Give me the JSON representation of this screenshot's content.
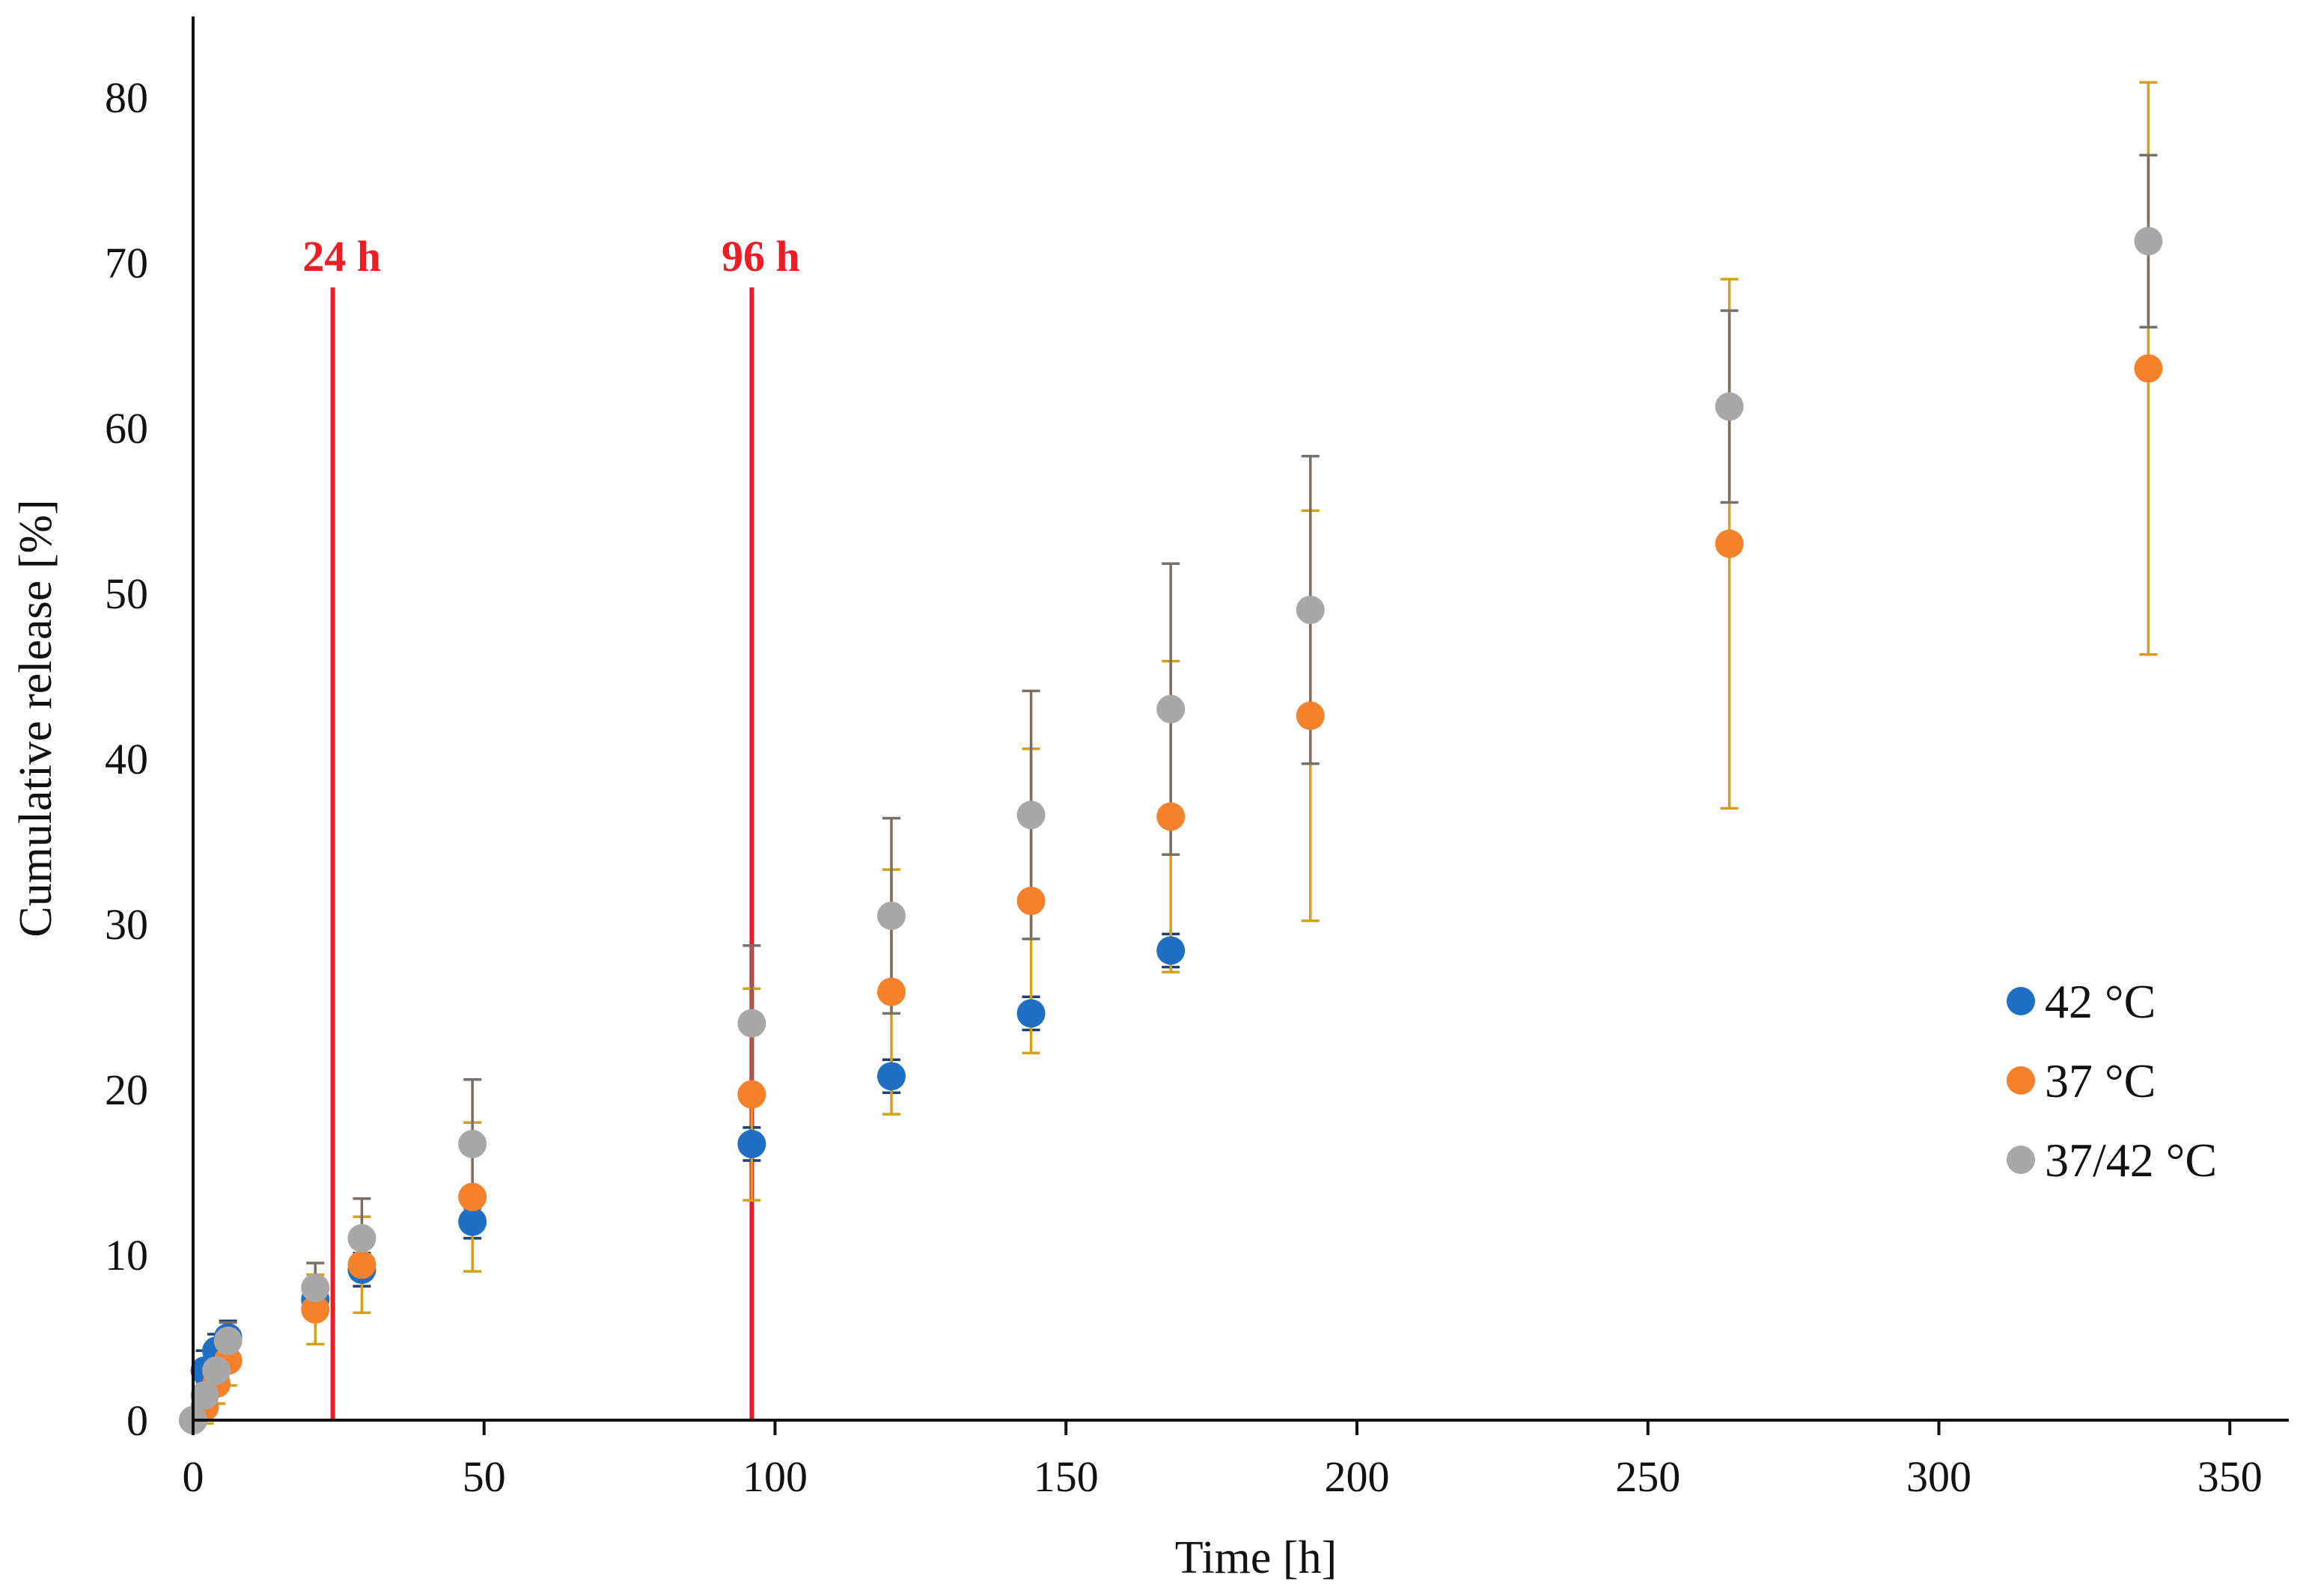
{
  "chart_data": {
    "type": "scatter",
    "title": "",
    "xlabel": "Time [h]",
    "ylabel": "Cumulative release [%]",
    "xlim": [
      0,
      360
    ],
    "ylim": [
      0,
      85
    ],
    "xticks": [
      0,
      50,
      100,
      150,
      200,
      250,
      300,
      350
    ],
    "yticks": [
      0,
      10,
      20,
      30,
      40,
      50,
      60,
      70,
      80
    ],
    "grid": false,
    "legend_position": "right",
    "error_bars": true,
    "series": [
      {
        "name": "42 °C",
        "color": "#1f6fc5",
        "error_color": "#1f3f6f",
        "points": [
          {
            "x": 0,
            "y": 0,
            "err": 0.3
          },
          {
            "x": 2,
            "y": 3.0,
            "err": 1.2
          },
          {
            "x": 4,
            "y": 4.2,
            "err": 1.0
          },
          {
            "x": 6,
            "y": 5.0,
            "err": 1.0
          },
          {
            "x": 21,
            "y": 7.3,
            "err": 1.0
          },
          {
            "x": 29,
            "y": 9.1,
            "err": 1.0
          },
          {
            "x": 48,
            "y": 12.0,
            "err": 1.0
          },
          {
            "x": 96,
            "y": 16.7,
            "err": 1.0
          },
          {
            "x": 120,
            "y": 20.8,
            "err": 1.0
          },
          {
            "x": 144,
            "y": 24.6,
            "err": 1.0
          },
          {
            "x": 168,
            "y": 28.4,
            "err": 1.0
          }
        ]
      },
      {
        "name": "37 °C",
        "color": "#f5822a",
        "error_color": "#d4a017",
        "points": [
          {
            "x": 0,
            "y": 0,
            "err": 0.3
          },
          {
            "x": 2,
            "y": 0.8,
            "err": 1.0
          },
          {
            "x": 4,
            "y": 2.2,
            "err": 1.2
          },
          {
            "x": 6,
            "y": 3.6,
            "err": 1.5
          },
          {
            "x": 21,
            "y": 6.7,
            "err": 2.1
          },
          {
            "x": 29,
            "y": 9.4,
            "err": 2.9
          },
          {
            "x": 48,
            "y": 13.5,
            "err": 4.5
          },
          {
            "x": 96,
            "y": 19.7,
            "err": 6.4
          },
          {
            "x": 120,
            "y": 25.9,
            "err": 7.4
          },
          {
            "x": 144,
            "y": 31.4,
            "err": 9.2
          },
          {
            "x": 168,
            "y": 36.5,
            "err": 9.4
          },
          {
            "x": 192,
            "y": 42.6,
            "err": 12.4
          },
          {
            "x": 264,
            "y": 53.0,
            "err": 16.0
          },
          {
            "x": 336,
            "y": 63.6,
            "err": 17.3
          }
        ]
      },
      {
        "name": "37/42 °C",
        "color": "#a8a8a8",
        "error_color": "#7a6f66",
        "points": [
          {
            "x": 0,
            "y": 0,
            "err": 0.3
          },
          {
            "x": 2,
            "y": 1.5,
            "err": 0.8
          },
          {
            "x": 4,
            "y": 3.0,
            "err": 1.0
          },
          {
            "x": 6,
            "y": 4.8,
            "err": 1.1
          },
          {
            "x": 21,
            "y": 8.0,
            "err": 1.5
          },
          {
            "x": 29,
            "y": 11.0,
            "err": 2.4
          },
          {
            "x": 48,
            "y": 16.7,
            "err": 3.9
          },
          {
            "x": 96,
            "y": 24.0,
            "err": 4.7
          },
          {
            "x": 120,
            "y": 30.5,
            "err": 5.9
          },
          {
            "x": 144,
            "y": 36.6,
            "err": 7.5
          },
          {
            "x": 168,
            "y": 43.0,
            "err": 8.8
          },
          {
            "x": 192,
            "y": 49.0,
            "err": 9.3
          },
          {
            "x": 264,
            "y": 61.3,
            "err": 5.8
          },
          {
            "x": 336,
            "y": 71.3,
            "err": 5.2
          }
        ]
      }
    ],
    "annotations": [
      {
        "label": "24 h",
        "x": 24,
        "color": "#ee1c25",
        "y_top": 68.5
      },
      {
        "label": "96 h",
        "x": 96,
        "color": "#ee1c25",
        "y_top": 68.5
      }
    ]
  }
}
